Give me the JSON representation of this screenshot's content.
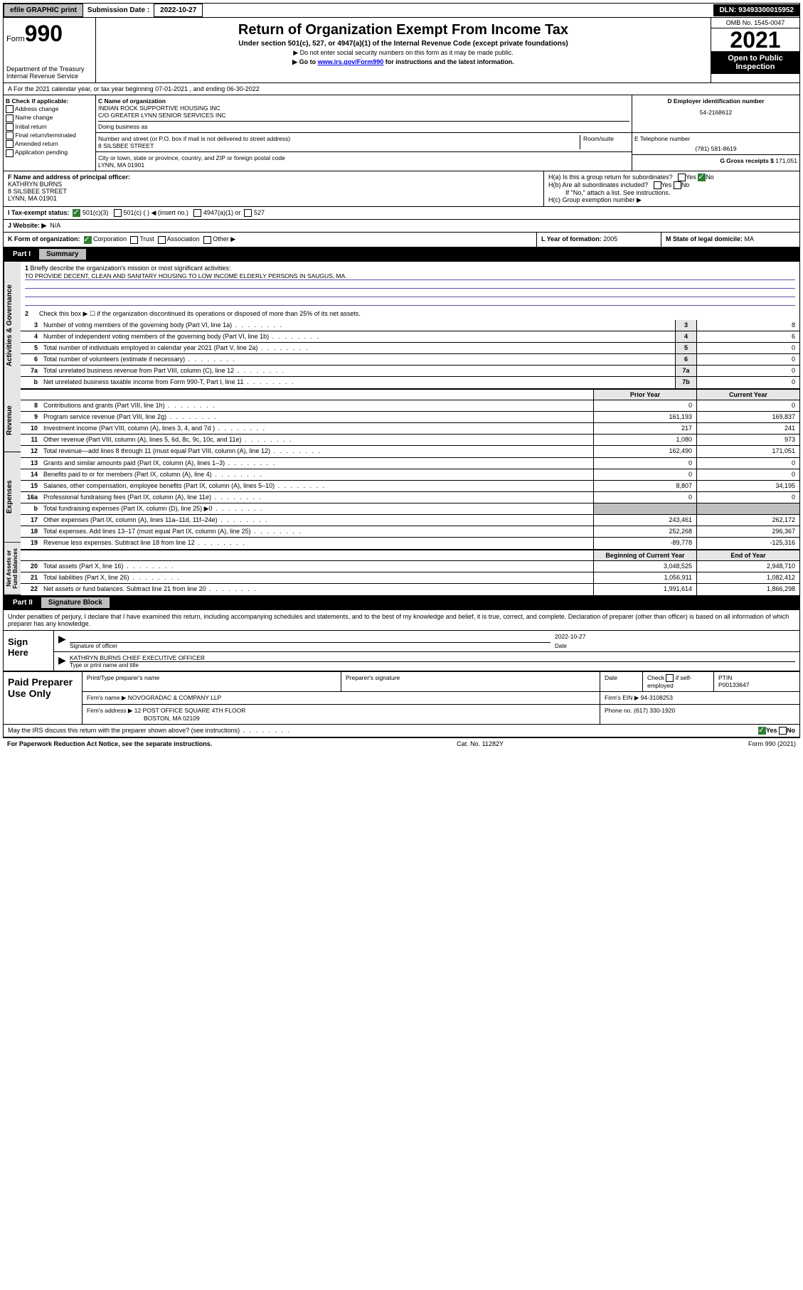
{
  "topbar": {
    "efile": "efile GRAPHIC print",
    "sub_label": "Submission Date : ",
    "sub_date": "2022-10-27",
    "dln_label": "DLN: ",
    "dln": "93493300015952"
  },
  "header": {
    "form_prefix": "Form",
    "form_num": "990",
    "dept": "Department of the Treasury\nInternal Revenue Service",
    "title": "Return of Organization Exempt From Income Tax",
    "subtitle": "Under section 501(c), 527, or 4947(a)(1) of the Internal Revenue Code (except private foundations)",
    "note1": "▶ Do not enter social security numbers on this form as it may be made public.",
    "note2a": "▶ Go to ",
    "note2_link": "www.irs.gov/Form990",
    "note2b": " for instructions and the latest information.",
    "omb": "OMB No. 1545-0047",
    "year": "2021",
    "open": "Open to Public Inspection"
  },
  "row_a": "A For the 2021 calendar year, or tax year beginning 07-01-2021   , and ending 06-30-2022",
  "b": {
    "hdr": "B Check if applicable:",
    "items": [
      "Address change",
      "Name change",
      "Initial return",
      "Final return/terminated",
      "Amended return",
      "Application pending"
    ]
  },
  "c": {
    "c_label": "C Name of organization",
    "name1": "INDIAN ROCK SUPPORTIVE HOUSING INC",
    "name2": "C/O GREATER LYNN SENIOR SERVICES INC",
    "dba": "Doing business as",
    "addr_label": "Number and street (or P.O. box if mail is not delivered to street address)",
    "addr": "8 SILSBEE STREET",
    "room": "Room/suite",
    "city_label": "City or town, state or province, country, and ZIP or foreign postal code",
    "city": "LYNN, MA  01901"
  },
  "d": {
    "label": "D Employer identification number",
    "val": "54-2168612"
  },
  "e": {
    "label": "E Telephone number",
    "val": "(781) 581-8619"
  },
  "g": {
    "label": "G Gross receipts $ ",
    "val": "171,051"
  },
  "f": {
    "label": "F Name and address of principal officer:",
    "name": "KATHRYN BURNS",
    "addr1": "8 SILSBEE STREET",
    "addr2": "LYNN, MA  01901"
  },
  "h": {
    "ha": "H(a)  Is this a group return for subordinates?",
    "hb": "H(b)  Are all subordinates included?",
    "hb_note": "If \"No,\" attach a list. See instructions.",
    "hc": "H(c)  Group exemption number ▶",
    "yes": "Yes",
    "no": "No"
  },
  "i": {
    "label": "I   Tax-exempt status:",
    "opts": [
      "501(c)(3)",
      "501(c) (  ) ◀ (insert no.)",
      "4947(a)(1) or",
      "527"
    ]
  },
  "j": {
    "label": "J   Website: ▶",
    "val": "N/A"
  },
  "k": {
    "label": "K Form of organization:",
    "opts": [
      "Corporation",
      "Trust",
      "Association",
      "Other ▶"
    ]
  },
  "l": {
    "label": "L Year of formation: ",
    "val": "2005"
  },
  "m": {
    "label": "M State of legal domicile: ",
    "val": "MA"
  },
  "part1": {
    "num": "Part I",
    "title": "Summary"
  },
  "sidetabs": {
    "a": "Activities & Governance",
    "b": "Revenue",
    "c": "Expenses",
    "d": "Net Assets or Fund Balances"
  },
  "p1": {
    "l1a": "Briefly describe the organization's mission or most significant activities:",
    "l1b": "TO PROVIDE DECENT, CLEAN AND SANITARY HOUSING TO LOW INCOME ELDERLY PERSONS IN SAUGUS, MA.",
    "l2": "Check this box ▶ ☐  if the organization discontinued its operations or disposed of more than 25% of its net assets.",
    "rows": [
      {
        "n": "3",
        "t": "Number of voting members of the governing body (Part VI, line 1a)",
        "box": "3",
        "v2": "8"
      },
      {
        "n": "4",
        "t": "Number of independent voting members of the governing body (Part VI, line 1b)",
        "box": "4",
        "v2": "6"
      },
      {
        "n": "5",
        "t": "Total number of individuals employed in calendar year 2021 (Part V, line 2a)",
        "box": "5",
        "v2": "0"
      },
      {
        "n": "6",
        "t": "Total number of volunteers (estimate if necessary)",
        "box": "6",
        "v2": "0"
      },
      {
        "n": "7a",
        "t": "Total unrelated business revenue from Part VIII, column (C), line 12",
        "box": "7a",
        "v2": "0"
      },
      {
        "n": "b",
        "t": "Net unrelated business taxable income from Form 990-T, Part I, line 11",
        "box": "7b",
        "v2": "0"
      }
    ],
    "hdr_prior": "Prior Year",
    "hdr_curr": "Current Year",
    "rev": [
      {
        "n": "8",
        "t": "Contributions and grants (Part VIII, line 1h)",
        "p": "0",
        "c": "0"
      },
      {
        "n": "9",
        "t": "Program service revenue (Part VIII, line 2g)",
        "p": "161,193",
        "c": "169,837"
      },
      {
        "n": "10",
        "t": "Investment income (Part VIII, column (A), lines 3, 4, and 7d )",
        "p": "217",
        "c": "241"
      },
      {
        "n": "11",
        "t": "Other revenue (Part VIII, column (A), lines 5, 6d, 8c, 9c, 10c, and 11e)",
        "p": "1,080",
        "c": "973"
      },
      {
        "n": "12",
        "t": "Total revenue—add lines 8 through 11 (must equal Part VIII, column (A), line 12)",
        "p": "162,490",
        "c": "171,051"
      }
    ],
    "exp": [
      {
        "n": "13",
        "t": "Grants and similar amounts paid (Part IX, column (A), lines 1–3)",
        "p": "0",
        "c": "0"
      },
      {
        "n": "14",
        "t": "Benefits paid to or for members (Part IX, column (A), line 4)",
        "p": "0",
        "c": "0"
      },
      {
        "n": "15",
        "t": "Salaries, other compensation, employee benefits (Part IX, column (A), lines 5–10)",
        "p": "8,807",
        "c": "34,195"
      },
      {
        "n": "16a",
        "t": "Professional fundraising fees (Part IX, column (A), line 11e)",
        "p": "0",
        "c": "0"
      },
      {
        "n": "b",
        "t": "Total fundraising expenses (Part IX, column (D), line 25) ▶0",
        "p": "",
        "c": "",
        "shade": true
      },
      {
        "n": "17",
        "t": "Other expenses (Part IX, column (A), lines 11a–11d, 11f–24e)",
        "p": "243,461",
        "c": "262,172"
      },
      {
        "n": "18",
        "t": "Total expenses. Add lines 13–17 (must equal Part IX, column (A), line 25)",
        "p": "252,268",
        "c": "296,367"
      },
      {
        "n": "19",
        "t": "Revenue less expenses. Subtract line 18 from line 12",
        "p": "-89,778",
        "c": "-125,316"
      }
    ],
    "hdr_beg": "Beginning of Current Year",
    "hdr_end": "End of Year",
    "net": [
      {
        "n": "20",
        "t": "Total assets (Part X, line 16)",
        "p": "3,048,525",
        "c": "2,948,710"
      },
      {
        "n": "21",
        "t": "Total liabilities (Part X, line 26)",
        "p": "1,056,911",
        "c": "1,082,412"
      },
      {
        "n": "22",
        "t": "Net assets or fund balances. Subtract line 21 from line 20",
        "p": "1,991,614",
        "c": "1,866,298"
      }
    ]
  },
  "part2": {
    "num": "Part II",
    "title": "Signature Block",
    "decl": "Under penalties of perjury, I declare that I have examined this return, including accompanying schedules and statements, and to the best of my knowledge and belief, it is true, correct, and complete. Declaration of preparer (other than officer) is based on all information of which preparer has any knowledge."
  },
  "sign": {
    "here": "Sign Here",
    "sig_of": "Signature of officer",
    "date_lbl": "Date",
    "date": "2022-10-27",
    "name": "KATHRYN BURNS  CHIEF EXECUTIVE OFFICER",
    "name_lbl": "Type or print name and title"
  },
  "paid": {
    "title": "Paid Preparer Use Only",
    "h1": "Print/Type preparer's name",
    "h2": "Preparer's signature",
    "h3": "Date",
    "h4a": "Check",
    "h4b": "if self-employed",
    "h5": "PTIN",
    "ptin": "P00133647",
    "firm_lbl": "Firm's name    ▶ ",
    "firm": "NOVOGRADAC & COMPANY LLP",
    "ein_lbl": "Firm's EIN ▶ ",
    "ein": "94-3108253",
    "addr_lbl": "Firm's address ▶ ",
    "addr1": "12 POST OFFICE SQUARE 4TH FLOOR",
    "addr2": "BOSTON, MA  02109",
    "phone_lbl": "Phone no. ",
    "phone": "(617) 330-1920"
  },
  "discuss": "May the IRS discuss this return with the preparer shown above? (see instructions)",
  "footer": {
    "left": "For Paperwork Reduction Act Notice, see the separate instructions.",
    "mid": "Cat. No. 11282Y",
    "right": "Form 990 (2021)"
  }
}
